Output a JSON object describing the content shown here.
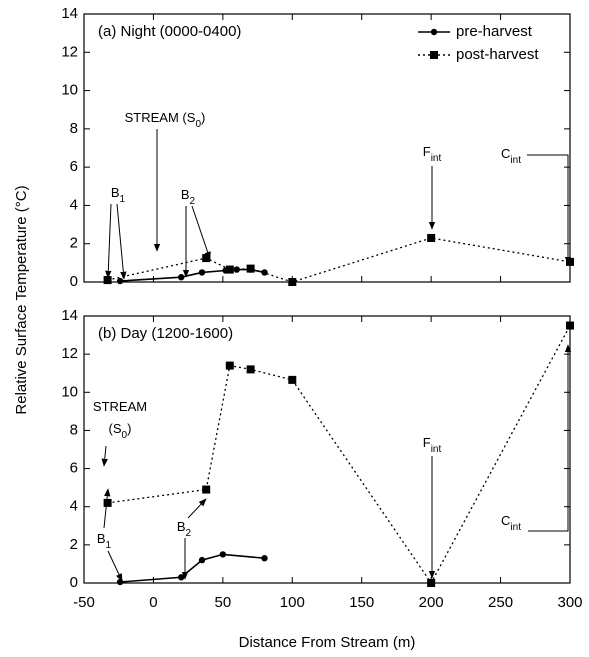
{
  "chart_data": [
    {
      "type": "line",
      "title": "(a) Night (0000-0400)",
      "ylabel": "Relative Surface Temperature (°C)",
      "ylim": [
        0,
        14
      ],
      "yticks": [
        0,
        2,
        4,
        6,
        8,
        10,
        12,
        14
      ],
      "series": [
        {
          "name": "pre-harvest",
          "color": "#000000",
          "style": "solid",
          "marker": "circle",
          "x": [
            -24,
            20,
            35,
            52,
            60,
            70,
            80
          ],
          "values": [
            0.05,
            0.25,
            0.5,
            0.6,
            0.65,
            0.65,
            0.5
          ]
        },
        {
          "name": "post-harvest",
          "color": "#000000",
          "style": "dotted",
          "marker": "square",
          "x": [
            -33,
            38,
            55,
            70,
            100,
            200,
            300
          ],
          "values": [
            0.1,
            1.25,
            0.65,
            0.7,
            0,
            2.3,
            1.05
          ]
        }
      ],
      "annotations": [
        {
          "lines": [
            {
              "text": "STREAM (S",
              "sub": "0",
              "tail": ")"
            }
          ]
        },
        {
          "lines": [
            {
              "text": "B",
              "sub": "1"
            }
          ]
        },
        {
          "lines": [
            {
              "text": "B",
              "sub": "2"
            }
          ]
        },
        {
          "lines": [
            {
              "text": "F",
              "sub": "int"
            }
          ]
        },
        {
          "lines": [
            {
              "text": "C",
              "sub": "int"
            }
          ]
        }
      ]
    },
    {
      "type": "line",
      "title": "(b) Day (1200-1600)",
      "xlabel": "Distance From Stream (m)",
      "xlim": [
        -50,
        300
      ],
      "xticks": [
        -50,
        0,
        50,
        100,
        150,
        200,
        250,
        300
      ],
      "ylim": [
        0,
        14
      ],
      "yticks": [
        0,
        2,
        4,
        6,
        8,
        10,
        12,
        14
      ],
      "series": [
        {
          "color": "#000000",
          "style": "solid",
          "marker": "circle",
          "x": [
            -24,
            20,
            35,
            50,
            80
          ],
          "values": [
            0.05,
            0.3,
            1.2,
            1.5,
            1.3
          ]
        },
        {
          "color": "#000000",
          "style": "dotted",
          "marker": "square",
          "x": [
            -33,
            38,
            55,
            70,
            100,
            200,
            300
          ],
          "values": [
            4.2,
            4.9,
            11.4,
            11.2,
            10.65,
            0,
            13.5
          ]
        }
      ],
      "annotations": [
        {
          "lines": [
            {
              "text": "STREAM"
            },
            {
              "text": "(S",
              "sub": "0",
              "tail": ")"
            }
          ]
        },
        {
          "lines": [
            {
              "text": "B",
              "sub": "1"
            }
          ]
        },
        {
          "lines": [
            {
              "text": "B",
              "sub": "2"
            }
          ]
        },
        {
          "lines": [
            {
              "text": "F",
              "sub": "int"
            }
          ]
        },
        {
          "lines": [
            {
              "text": "C",
              "sub": "int"
            }
          ]
        }
      ]
    }
  ]
}
